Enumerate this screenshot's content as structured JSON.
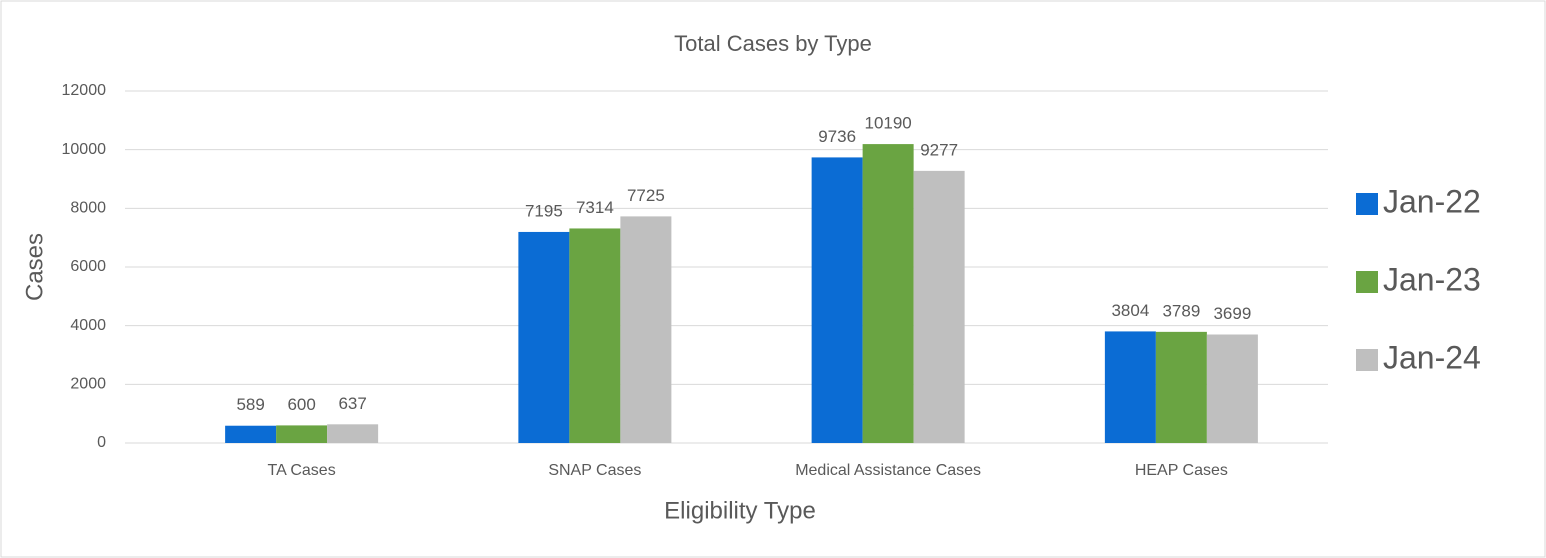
{
  "chart_data": {
    "type": "bar",
    "title": "Total Cases by Type",
    "x_label": "Eligibility Type",
    "y_label": "Cases",
    "categories": [
      "TA Cases",
      "SNAP Cases",
      "Medical Assistance Cases",
      "HEAP Cases"
    ],
    "series": [
      {
        "name": "Jan-22",
        "color": "#0b6cd4",
        "values": [
          589,
          7195,
          9736,
          3804
        ]
      },
      {
        "name": "Jan-23",
        "color": "#6aa442",
        "values": [
          600,
          7314,
          10190,
          3789
        ]
      },
      {
        "name": "Jan-24",
        "color": "#bfbfbf",
        "values": [
          637,
          7725,
          9277,
          3699
        ]
      }
    ],
    "ylim": [
      0,
      12000
    ],
    "yticks": [
      0,
      2000,
      4000,
      6000,
      8000,
      10000,
      12000
    ],
    "grid": true,
    "legend": "right"
  }
}
